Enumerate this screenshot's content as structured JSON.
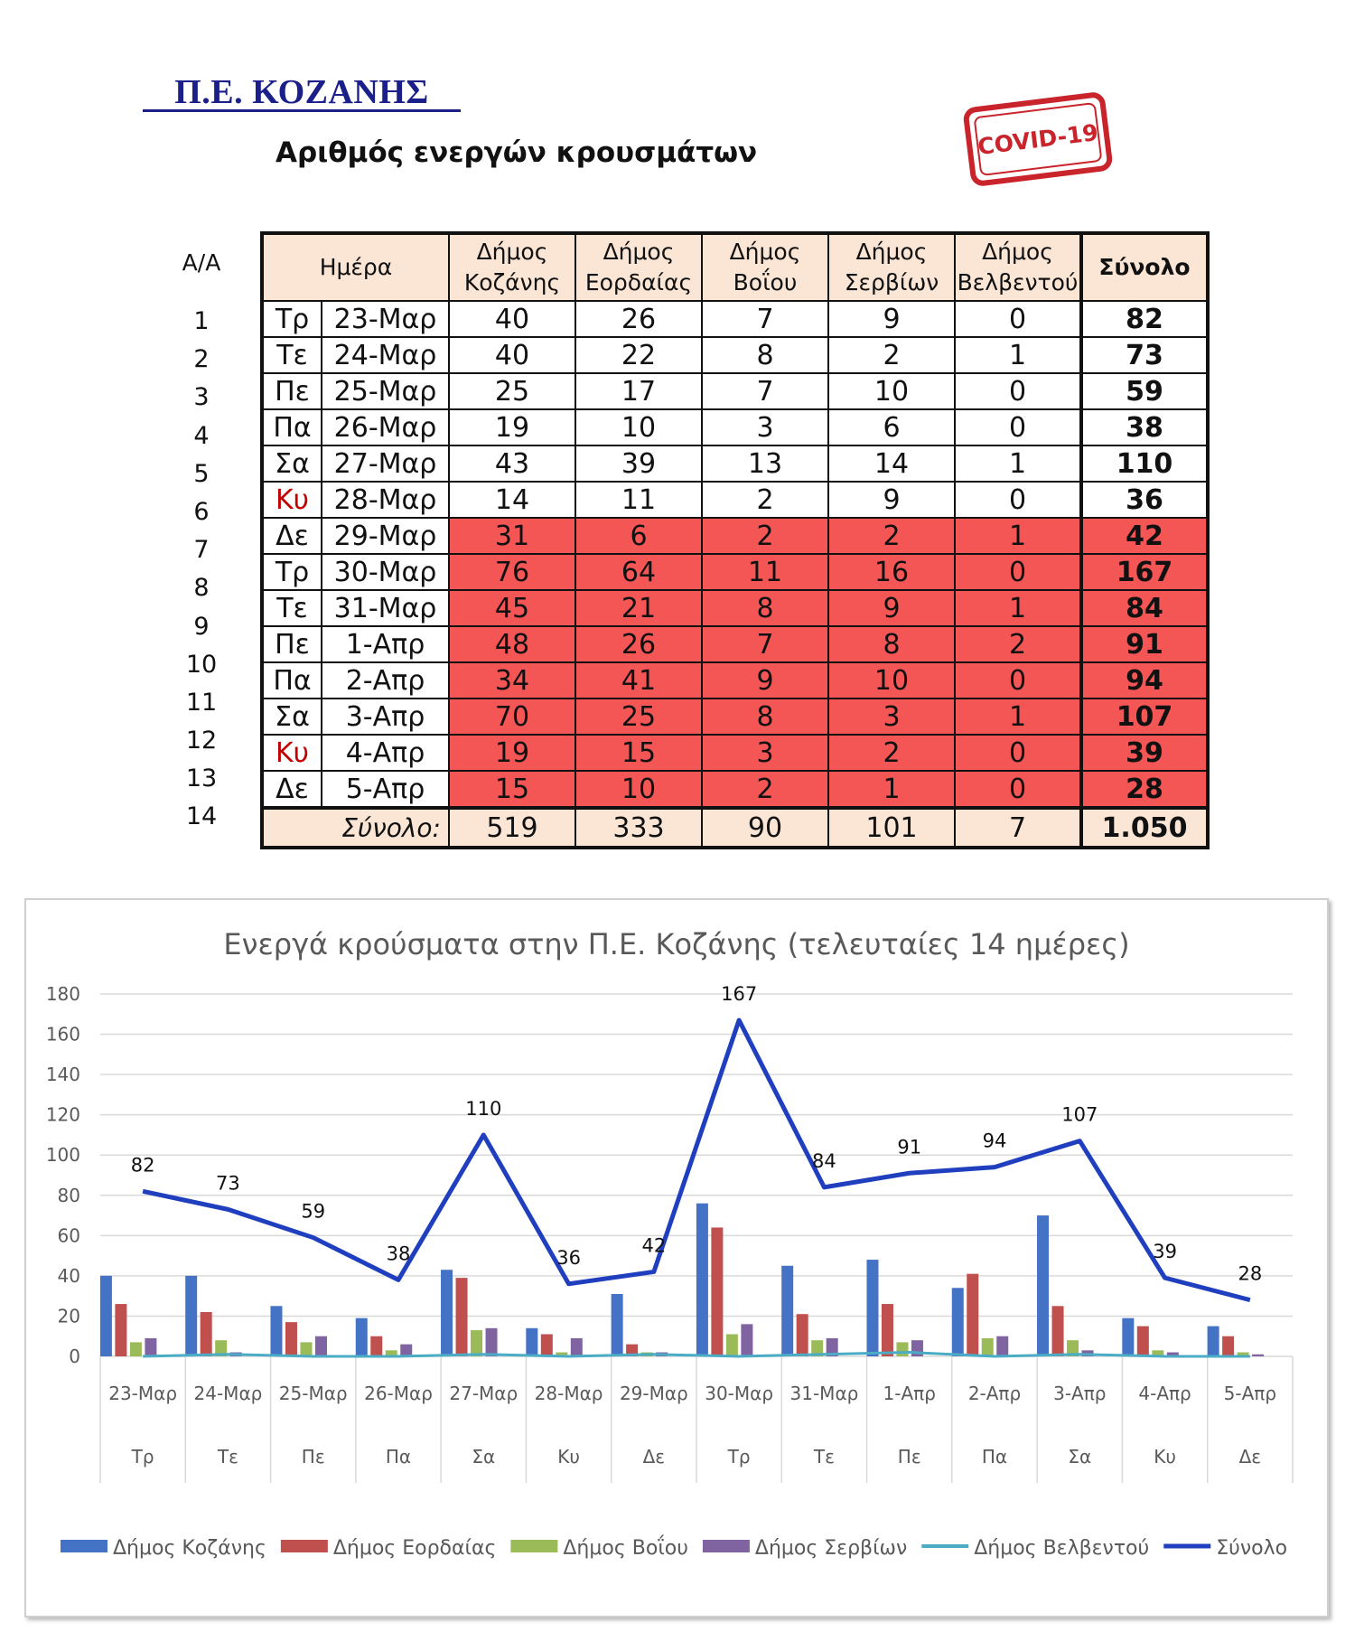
{
  "header": {
    "title": "Π.Ε. ΚΟΖΑΝΗΣ",
    "subtitle": "Αριθμός ενεργών κρουσμάτων",
    "stamp": "COVID-19"
  },
  "table": {
    "aa_header": "Α/Α",
    "day_header": "Ημέρα",
    "columns": [
      [
        "Δήμος",
        "Κοζάνης"
      ],
      [
        "Δήμος",
        "Εορδαίας"
      ],
      [
        "Δήμος",
        "Βοΐου"
      ],
      [
        "Δήμος",
        "Σερβίων"
      ],
      [
        "Δήμος",
        "Βελβεντού"
      ]
    ],
    "total_header": "Σύνολο",
    "rows": [
      {
        "aa": "1",
        "dow": "Τρ",
        "date": "23-Μαρ",
        "vals": [
          "40",
          "26",
          "7",
          "9",
          "0"
        ],
        "total": "82",
        "highlight": false,
        "sunday": false
      },
      {
        "aa": "2",
        "dow": "Τε",
        "date": "24-Μαρ",
        "vals": [
          "40",
          "22",
          "8",
          "2",
          "1"
        ],
        "total": "73",
        "highlight": false,
        "sunday": false
      },
      {
        "aa": "3",
        "dow": "Πε",
        "date": "25-Μαρ",
        "vals": [
          "25",
          "17",
          "7",
          "10",
          "0"
        ],
        "total": "59",
        "highlight": false,
        "sunday": false
      },
      {
        "aa": "4",
        "dow": "Πα",
        "date": "26-Μαρ",
        "vals": [
          "19",
          "10",
          "3",
          "6",
          "0"
        ],
        "total": "38",
        "highlight": false,
        "sunday": false
      },
      {
        "aa": "5",
        "dow": "Σα",
        "date": "27-Μαρ",
        "vals": [
          "43",
          "39",
          "13",
          "14",
          "1"
        ],
        "total": "110",
        "highlight": false,
        "sunday": false
      },
      {
        "aa": "6",
        "dow": "Κυ",
        "date": "28-Μαρ",
        "vals": [
          "14",
          "11",
          "2",
          "9",
          "0"
        ],
        "total": "36",
        "highlight": false,
        "sunday": true
      },
      {
        "aa": "7",
        "dow": "Δε",
        "date": "29-Μαρ",
        "vals": [
          "31",
          "6",
          "2",
          "2",
          "1"
        ],
        "total": "42",
        "highlight": true,
        "sunday": false
      },
      {
        "aa": "8",
        "dow": "Τρ",
        "date": "30-Μαρ",
        "vals": [
          "76",
          "64",
          "11",
          "16",
          "0"
        ],
        "total": "167",
        "highlight": true,
        "sunday": false
      },
      {
        "aa": "9",
        "dow": "Τε",
        "date": "31-Μαρ",
        "vals": [
          "45",
          "21",
          "8",
          "9",
          "1"
        ],
        "total": "84",
        "highlight": true,
        "sunday": false
      },
      {
        "aa": "10",
        "dow": "Πε",
        "date": "1-Απρ",
        "vals": [
          "48",
          "26",
          "7",
          "8",
          "2"
        ],
        "total": "91",
        "highlight": true,
        "sunday": false
      },
      {
        "aa": "11",
        "dow": "Πα",
        "date": "2-Απρ",
        "vals": [
          "34",
          "41",
          "9",
          "10",
          "0"
        ],
        "total": "94",
        "highlight": true,
        "sunday": false
      },
      {
        "aa": "12",
        "dow": "Σα",
        "date": "3-Απρ",
        "vals": [
          "70",
          "25",
          "8",
          "3",
          "1"
        ],
        "total": "107",
        "highlight": true,
        "sunday": false
      },
      {
        "aa": "13",
        "dow": "Κυ",
        "date": "4-Απρ",
        "vals": [
          "19",
          "15",
          "3",
          "2",
          "0"
        ],
        "total": "39",
        "highlight": true,
        "sunday": true
      },
      {
        "aa": "14",
        "dow": "Δε",
        "date": "5-Απρ",
        "vals": [
          "15",
          "10",
          "2",
          "1",
          "0"
        ],
        "total": "28",
        "highlight": true,
        "sunday": false
      }
    ],
    "sum_label": "Σύνολο:",
    "sums": [
      "519",
      "333",
      "90",
      "101",
      "7"
    ],
    "grand_total": "1.050",
    "colors": {
      "header_bg": "#fbe6d6",
      "highlight": "#f45555",
      "sunday_text": "#c00000"
    }
  },
  "chart_data": {
    "type": "bar",
    "title": "Ενεργά κρούσματα στην Π.Ε. Κοζάνης (τελευταίες 14 ημέρες)",
    "categories": [
      "23-Μαρ",
      "24-Μαρ",
      "25-Μαρ",
      "26-Μαρ",
      "27-Μαρ",
      "28-Μαρ",
      "29-Μαρ",
      "30-Μαρ",
      "31-Μαρ",
      "1-Απρ",
      "2-Απρ",
      "3-Απρ",
      "4-Απρ",
      "5-Απρ"
    ],
    "categories_dow": [
      "Τρ",
      "Τε",
      "Πε",
      "Πα",
      "Σα",
      "Κυ",
      "Δε",
      "Τρ",
      "Τε",
      "Πε",
      "Πα",
      "Σα",
      "Κυ",
      "Δε"
    ],
    "series": [
      {
        "name": "Δήμος Κοζάνης",
        "type": "bar",
        "color": "#4472c4",
        "values": [
          40,
          40,
          25,
          19,
          43,
          14,
          31,
          76,
          45,
          48,
          34,
          70,
          19,
          15
        ]
      },
      {
        "name": "Δήμος Εορδαίας",
        "type": "bar",
        "color": "#c0504d",
        "values": [
          26,
          22,
          17,
          10,
          39,
          11,
          6,
          64,
          21,
          26,
          41,
          25,
          15,
          10
        ]
      },
      {
        "name": "Δήμος Βοΐου",
        "type": "bar",
        "color": "#9bbb59",
        "values": [
          7,
          8,
          7,
          3,
          13,
          2,
          2,
          11,
          8,
          7,
          9,
          8,
          3,
          2
        ]
      },
      {
        "name": "Δήμος Σερβίων",
        "type": "bar",
        "color": "#8064a2",
        "values": [
          9,
          2,
          10,
          6,
          14,
          9,
          2,
          16,
          9,
          8,
          10,
          3,
          2,
          1
        ]
      },
      {
        "name": "Δήμος Βελβεντού",
        "type": "line",
        "color": "#4bacc6",
        "values": [
          0,
          1,
          0,
          0,
          1,
          0,
          1,
          0,
          1,
          2,
          0,
          1,
          0,
          0
        ]
      },
      {
        "name": "Σύνολο",
        "type": "line",
        "color": "#1f3fbf",
        "values": [
          82,
          73,
          59,
          38,
          110,
          36,
          42,
          167,
          84,
          91,
          94,
          107,
          39,
          28
        ]
      }
    ],
    "data_labels": [
      "82",
      "73",
      "59",
      "38",
      "110",
      "36",
      "42",
      "167",
      "84",
      "91",
      "94",
      "107",
      "39",
      "28"
    ],
    "ylim": [
      0,
      180
    ],
    "yticks": [
      "0",
      "20",
      "40",
      "60",
      "80",
      "100",
      "120",
      "140",
      "160",
      "180"
    ],
    "grid": true,
    "legend": "bottom"
  }
}
